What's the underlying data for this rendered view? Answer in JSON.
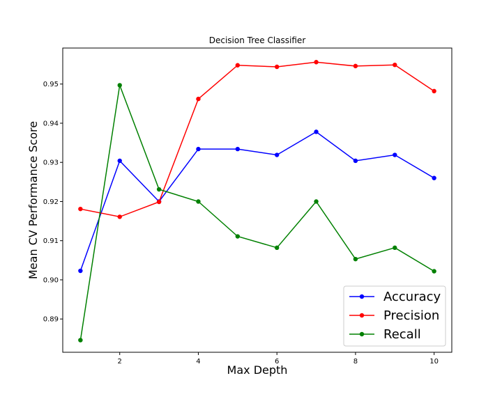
{
  "chart_data": {
    "type": "line",
    "title": "Decision Tree Classifier",
    "xlabel": "Max Depth",
    "ylabel": "Mean CV Performance Score",
    "x": [
      1,
      2,
      3,
      4,
      5,
      6,
      7,
      8,
      9,
      10
    ],
    "xlim": [
      0.55,
      10.45
    ],
    "ylim": [
      0.8815,
      0.9592
    ],
    "xticks": [
      2,
      4,
      6,
      8,
      10
    ],
    "xtick_labels": [
      "2",
      "4",
      "6",
      "8",
      "10"
    ],
    "yticks": [
      0.89,
      0.9,
      0.91,
      0.92,
      0.93,
      0.94,
      0.95
    ],
    "ytick_labels": [
      "0.89",
      "0.90",
      "0.91",
      "0.92",
      "0.93",
      "0.94",
      "0.95"
    ],
    "grid": false,
    "legend_position": "lower-right",
    "series": [
      {
        "name": "Accuracy",
        "color": "#0000ff",
        "values": [
          0.9023,
          0.9304,
          0.92,
          0.9334,
          0.9334,
          0.9319,
          0.9378,
          0.9304,
          0.9319,
          0.926
        ]
      },
      {
        "name": "Precision",
        "color": "#ff0000",
        "values": [
          0.9181,
          0.9161,
          0.9199,
          0.9462,
          0.9548,
          0.9544,
          0.9556,
          0.9546,
          0.9549,
          0.9482
        ]
      },
      {
        "name": "Recall",
        "color": "#008000",
        "values": [
          0.8846,
          0.9497,
          0.9231,
          0.92,
          0.9111,
          0.9082,
          0.92,
          0.9053,
          0.9082,
          0.9022
        ]
      }
    ]
  }
}
